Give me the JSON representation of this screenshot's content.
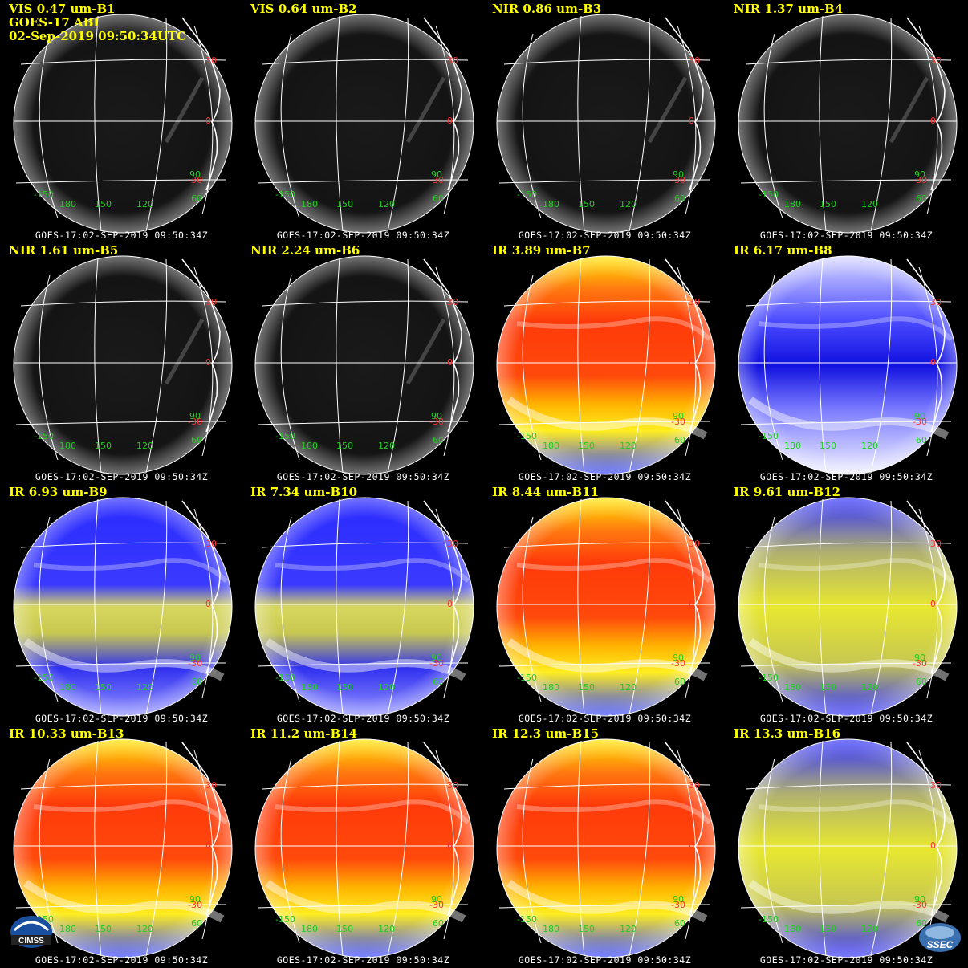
{
  "header": {
    "line2": "GOES-17 ABI",
    "line3": "02-Sep-2019 09:50:34UTC"
  },
  "footer_text": "GOES-17:02-SEP-2019 09:50:34Z",
  "lat_labels": [
    "30",
    "0",
    "-30"
  ],
  "lon_labels": [
    "-150",
    "180",
    "150",
    "120",
    "60",
    "90"
  ],
  "colors": {
    "title": "#ffff00",
    "grid": "#ffffff",
    "lat_label": "#ff3030",
    "lon_label": "#22cc22"
  },
  "panels": [
    {
      "title": "VIS 0.47 um-B1",
      "style": "vis"
    },
    {
      "title": "VIS 0.64 um-B2",
      "style": "vis"
    },
    {
      "title": "NIR 0.86 um-B3",
      "style": "vis"
    },
    {
      "title": "NIR 1.37 um-B4",
      "style": "vis"
    },
    {
      "title": "NIR 1.61 um-B5",
      "style": "vis"
    },
    {
      "title": "NIR 2.24 um-B6",
      "style": "vis"
    },
    {
      "title": "IR 3.89 um-B7",
      "style": "ir-warm"
    },
    {
      "title": "IR 6.17 um-B8",
      "style": "wv-pale"
    },
    {
      "title": "IR 6.93 um-B9",
      "style": "wv-blue"
    },
    {
      "title": "IR 7.34 um-B10",
      "style": "wv-blue"
    },
    {
      "title": "IR 8.44 um-B11",
      "style": "ir-warm"
    },
    {
      "title": "IR 9.61 um-B12",
      "style": "ozone"
    },
    {
      "title": "IR 10.33 um-B13",
      "style": "ir-warm"
    },
    {
      "title": "IR 11.2 um-B14",
      "style": "ir-warm"
    },
    {
      "title": "IR 12.3 um-B15",
      "style": "ir-warm"
    },
    {
      "title": "IR 13.3 um-B16",
      "style": "ozone"
    }
  ],
  "logos": {
    "left": {
      "label": "CIMSS"
    },
    "right": {
      "label": "SSEC"
    }
  }
}
